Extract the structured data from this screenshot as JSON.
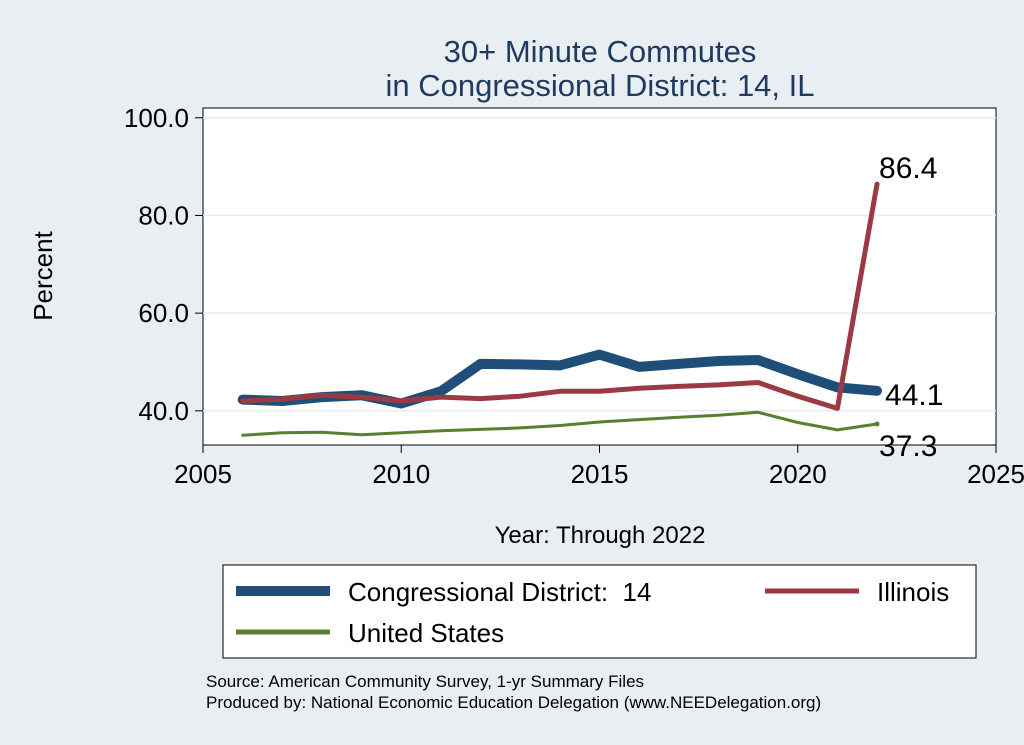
{
  "chart_data": {
    "type": "line",
    "title": "30+ Minute Commutes",
    "subtitle": "in Congressional District:  14, IL",
    "xlabel": "Year: Through 2022",
    "ylabel": "Percent",
    "xlim": [
      2005,
      2025
    ],
    "ylim": [
      33,
      102
    ],
    "x_ticks": [
      "2005",
      "2010",
      "2015",
      "2020",
      "2025"
    ],
    "y_ticks": [
      "40.0",
      "60.0",
      "80.0",
      "100.0"
    ],
    "grid": true,
    "legend_position": "bottom",
    "x": [
      2006,
      2007,
      2008,
      2009,
      2010,
      2011,
      2012,
      2013,
      2014,
      2015,
      2016,
      2017,
      2018,
      2019,
      2020,
      2021,
      2022
    ],
    "series": [
      {
        "name": "Congressional District:  14",
        "color": "#1f4e79",
        "values": [
          42.3,
          42.0,
          42.8,
          43.2,
          41.5,
          44.0,
          49.6,
          49.5,
          49.3,
          51.5,
          49.0,
          49.6,
          50.2,
          50.4,
          47.5,
          44.8,
          44.1
        ],
        "end_label": "44.1"
      },
      {
        "name": "Illinois",
        "color": "#9b3a42",
        "values": [
          42.0,
          42.4,
          43.2,
          42.8,
          42.0,
          42.8,
          42.5,
          43.0,
          44.0,
          44.0,
          44.6,
          45.0,
          45.3,
          45.8,
          43.0,
          40.5,
          86.4
        ],
        "end_label": "86.4"
      },
      {
        "name": "United States",
        "color": "#5a7f2e",
        "values": [
          35.0,
          35.5,
          35.6,
          35.1,
          35.5,
          35.9,
          36.2,
          36.5,
          37.0,
          37.7,
          38.2,
          38.7,
          39.1,
          39.7,
          37.6,
          36.1,
          37.3
        ],
        "end_label": "37.3"
      }
    ]
  },
  "footer": {
    "source": "Source: American Community Survey, 1-yr Summary Files",
    "produced_by": "Produced by: National Economic Education Delegation (www.NEEDelegation.org)"
  }
}
